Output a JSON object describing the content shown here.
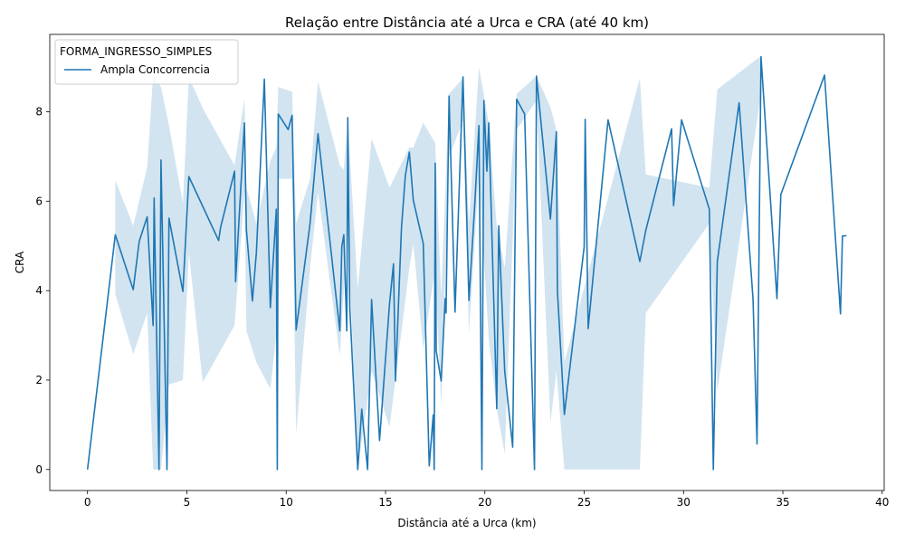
{
  "chart_data": {
    "type": "line",
    "title": "Relação entre Distância até a Urca e CRA (até 40 km)",
    "xlabel": "Distância até a Urca (km)",
    "ylabel": "CRA",
    "xlim": [
      -1.9,
      40.1
    ],
    "ylim": [
      -0.47,
      9.73
    ],
    "xticks": [
      0,
      5,
      10,
      15,
      20,
      25,
      30,
      35,
      40
    ],
    "yticks": [
      0,
      2,
      4,
      6,
      8
    ],
    "grid": false,
    "legend": {
      "title": "FORMA_INGRESSO_SIMPLES",
      "placement": "top-left",
      "entries": [
        "Ampla Concorrencia"
      ]
    },
    "colors": {
      "line": "#1f77b4",
      "band": "#1f77b4"
    },
    "series": [
      {
        "name": "Ampla Concorrencia",
        "points": [
          [
            0.0,
            0.0
          ],
          [
            1.4,
            5.25
          ],
          [
            2.3,
            4.02
          ],
          [
            2.6,
            5.1
          ],
          [
            3.0,
            5.65
          ],
          [
            3.3,
            3.22
          ],
          [
            3.35,
            6.07
          ],
          [
            3.6,
            0.0
          ],
          [
            3.7,
            6.92
          ],
          [
            4.0,
            0.0
          ],
          [
            4.1,
            5.62
          ],
          [
            4.8,
            3.98
          ],
          [
            5.1,
            6.55
          ],
          [
            6.6,
            5.12
          ],
          [
            6.7,
            5.42
          ],
          [
            7.4,
            6.67
          ],
          [
            7.45,
            4.2
          ],
          [
            7.9,
            7.75
          ],
          [
            8.0,
            5.35
          ],
          [
            8.3,
            3.77
          ],
          [
            8.5,
            4.85
          ],
          [
            8.9,
            8.73
          ],
          [
            9.2,
            3.62
          ],
          [
            9.5,
            5.82
          ],
          [
            9.55,
            0.0
          ],
          [
            9.6,
            7.95
          ],
          [
            10.1,
            7.6
          ],
          [
            10.3,
            7.92
          ],
          [
            10.5,
            3.12
          ],
          [
            11.2,
            5.5
          ],
          [
            11.6,
            7.51
          ],
          [
            12.2,
            5.12
          ],
          [
            12.7,
            3.1
          ],
          [
            12.8,
            4.98
          ],
          [
            12.9,
            5.25
          ],
          [
            13.05,
            3.1
          ],
          [
            13.1,
            7.87
          ],
          [
            13.2,
            3.62
          ],
          [
            13.6,
            0.0
          ],
          [
            13.8,
            1.35
          ],
          [
            14.1,
            0.0
          ],
          [
            14.3,
            3.8
          ],
          [
            14.7,
            0.65
          ],
          [
            15.2,
            3.7
          ],
          [
            15.4,
            4.6
          ],
          [
            15.5,
            1.98
          ],
          [
            15.8,
            5.4
          ],
          [
            16.0,
            6.57
          ],
          [
            16.2,
            7.1
          ],
          [
            16.4,
            6.02
          ],
          [
            16.9,
            5.05
          ],
          [
            17.2,
            0.08
          ],
          [
            17.4,
            1.22
          ],
          [
            17.45,
            0.0
          ],
          [
            17.5,
            6.85
          ],
          [
            17.55,
            2.65
          ],
          [
            17.8,
            1.98
          ],
          [
            18.0,
            3.82
          ],
          [
            18.05,
            3.5
          ],
          [
            18.2,
            8.35
          ],
          [
            18.5,
            3.52
          ],
          [
            18.9,
            8.78
          ],
          [
            19.2,
            3.78
          ],
          [
            19.5,
            6.0
          ],
          [
            19.7,
            7.69
          ],
          [
            19.85,
            0.0
          ],
          [
            19.95,
            8.25
          ],
          [
            20.1,
            6.67
          ],
          [
            20.2,
            7.75
          ],
          [
            20.6,
            1.36
          ],
          [
            20.7,
            5.45
          ],
          [
            21.0,
            2.2
          ],
          [
            21.4,
            0.5
          ],
          [
            21.6,
            8.28
          ],
          [
            22.0,
            7.95
          ],
          [
            22.5,
            0.0
          ],
          [
            22.6,
            8.8
          ],
          [
            23.3,
            5.6
          ],
          [
            23.6,
            7.55
          ],
          [
            23.65,
            4.0
          ],
          [
            24.0,
            1.23
          ],
          [
            25.0,
            4.98
          ],
          [
            25.05,
            7.83
          ],
          [
            25.2,
            3.15
          ],
          [
            26.2,
            7.82
          ],
          [
            27.8,
            4.65
          ],
          [
            28.1,
            5.35
          ],
          [
            29.4,
            7.62
          ],
          [
            29.5,
            5.9
          ],
          [
            29.9,
            7.82
          ],
          [
            31.3,
            5.82
          ],
          [
            31.5,
            0.0
          ],
          [
            31.7,
            4.65
          ],
          [
            32.8,
            8.2
          ],
          [
            33.5,
            3.8
          ],
          [
            33.7,
            0.57
          ],
          [
            33.9,
            9.23
          ],
          [
            34.7,
            3.82
          ],
          [
            34.9,
            6.15
          ],
          [
            37.1,
            8.82
          ],
          [
            37.9,
            3.48
          ],
          [
            38.0,
            5.22
          ],
          [
            38.2,
            5.23
          ]
        ],
        "band": [
          [
            1.4,
            3.92,
            6.47
          ],
          [
            2.3,
            2.58,
            5.45
          ],
          [
            3.0,
            3.5,
            6.75
          ],
          [
            3.3,
            0.0,
            8.82
          ],
          [
            3.7,
            0.0,
            8.55
          ],
          [
            4.1,
            1.9,
            7.7
          ],
          [
            4.8,
            2.0,
            5.95
          ],
          [
            5.1,
            4.85,
            8.77
          ],
          [
            5.8,
            1.95,
            8.08
          ],
          [
            7.4,
            3.22,
            6.8
          ],
          [
            7.9,
            6.2,
            8.3
          ],
          [
            8.0,
            3.1,
            6.3
          ],
          [
            8.5,
            2.4,
            5.5
          ],
          [
            9.2,
            1.8,
            6.9
          ],
          [
            9.5,
            3.0,
            7.2
          ],
          [
            9.6,
            6.5,
            8.55
          ],
          [
            10.3,
            6.5,
            8.45
          ],
          [
            10.5,
            0.8,
            5.5
          ],
          [
            11.2,
            4.5,
            6.5
          ],
          [
            11.6,
            6.2,
            8.68
          ],
          [
            12.7,
            2.55,
            6.8
          ],
          [
            12.9,
            4.0,
            6.7
          ],
          [
            13.1,
            5.5,
            7.8
          ],
          [
            13.6,
            0.0,
            4.05
          ],
          [
            14.3,
            2.2,
            7.4
          ],
          [
            15.2,
            0.95,
            6.3
          ],
          [
            16.2,
            4.5,
            7.2
          ],
          [
            16.4,
            5.05,
            7.2
          ],
          [
            16.9,
            2.7,
            7.75
          ],
          [
            17.5,
            4.5,
            7.3
          ],
          [
            17.8,
            1.4,
            3.9
          ],
          [
            18.2,
            7.0,
            8.4
          ],
          [
            18.9,
            7.8,
            8.75
          ],
          [
            19.2,
            3.05,
            5.5
          ],
          [
            19.7,
            6.6,
            9.0
          ],
          [
            20.2,
            2.9,
            7.75
          ],
          [
            20.6,
            1.36,
            5.45
          ],
          [
            21.0,
            0.35,
            4.5
          ],
          [
            21.6,
            7.6,
            8.4
          ],
          [
            22.6,
            8.25,
            8.8
          ],
          [
            23.3,
            1.05,
            8.1
          ],
          [
            23.6,
            2.2,
            7.6
          ],
          [
            24.0,
            0.0,
            2.4
          ],
          [
            27.8,
            0.0,
            8.75
          ],
          [
            28.1,
            3.5,
            6.6
          ],
          [
            31.3,
            5.5,
            6.3
          ],
          [
            31.7,
            1.75,
            8.5
          ],
          [
            33.9,
            8.4,
            9.25
          ]
        ]
      }
    ]
  }
}
